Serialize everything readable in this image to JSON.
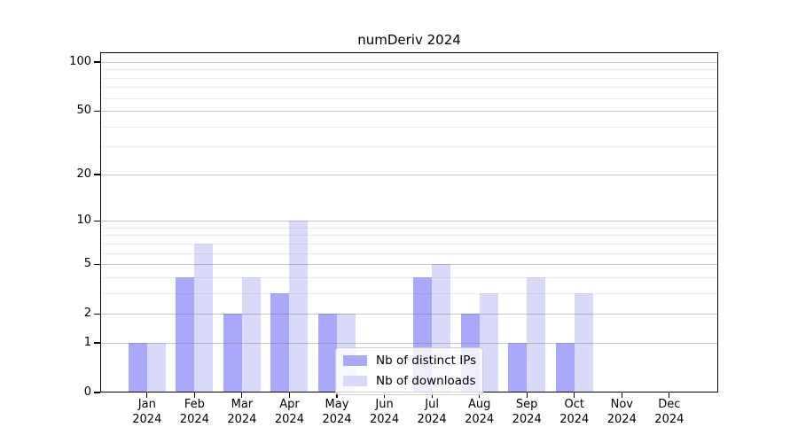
{
  "chart_data": {
    "type": "bar",
    "title": "numDeriv 2024",
    "categories": [
      "Jan",
      "Feb",
      "Mar",
      "Apr",
      "May",
      "Jun",
      "Jul",
      "Aug",
      "Sep",
      "Oct",
      "Nov",
      "Dec"
    ],
    "year_label": "2024",
    "series": [
      {
        "name": "Nb of distinct IPs",
        "color": "#a9a8fa",
        "values": [
          1,
          4,
          2,
          3,
          2,
          0,
          4,
          2,
          1,
          1,
          0,
          0
        ]
      },
      {
        "name": "Nb of downloads",
        "color": "#d9d9fa",
        "values": [
          1,
          7,
          4,
          10,
          2,
          0,
          5,
          3,
          4,
          3,
          0,
          0
        ]
      }
    ],
    "y_axis": {
      "scale": "log1p",
      "ticks": [
        0,
        1,
        2,
        5,
        10,
        20,
        50,
        100
      ],
      "minor_gridlines": [
        3,
        4,
        6,
        7,
        8,
        9,
        30,
        40,
        60,
        70,
        80,
        90
      ],
      "range": [
        0,
        100
      ]
    },
    "grid": true,
    "legend_position": "inside-bottom-center"
  },
  "colors": {
    "bar_distinct_ips": "#a9a8fa",
    "bar_downloads": "#d9d9fa",
    "grid_minor": "#ebebeb",
    "grid_major": "#c6c6c6",
    "axis": "#000000",
    "legend_border": "#cccccc",
    "legend_background": "rgba(255,255,255,0.8)"
  }
}
